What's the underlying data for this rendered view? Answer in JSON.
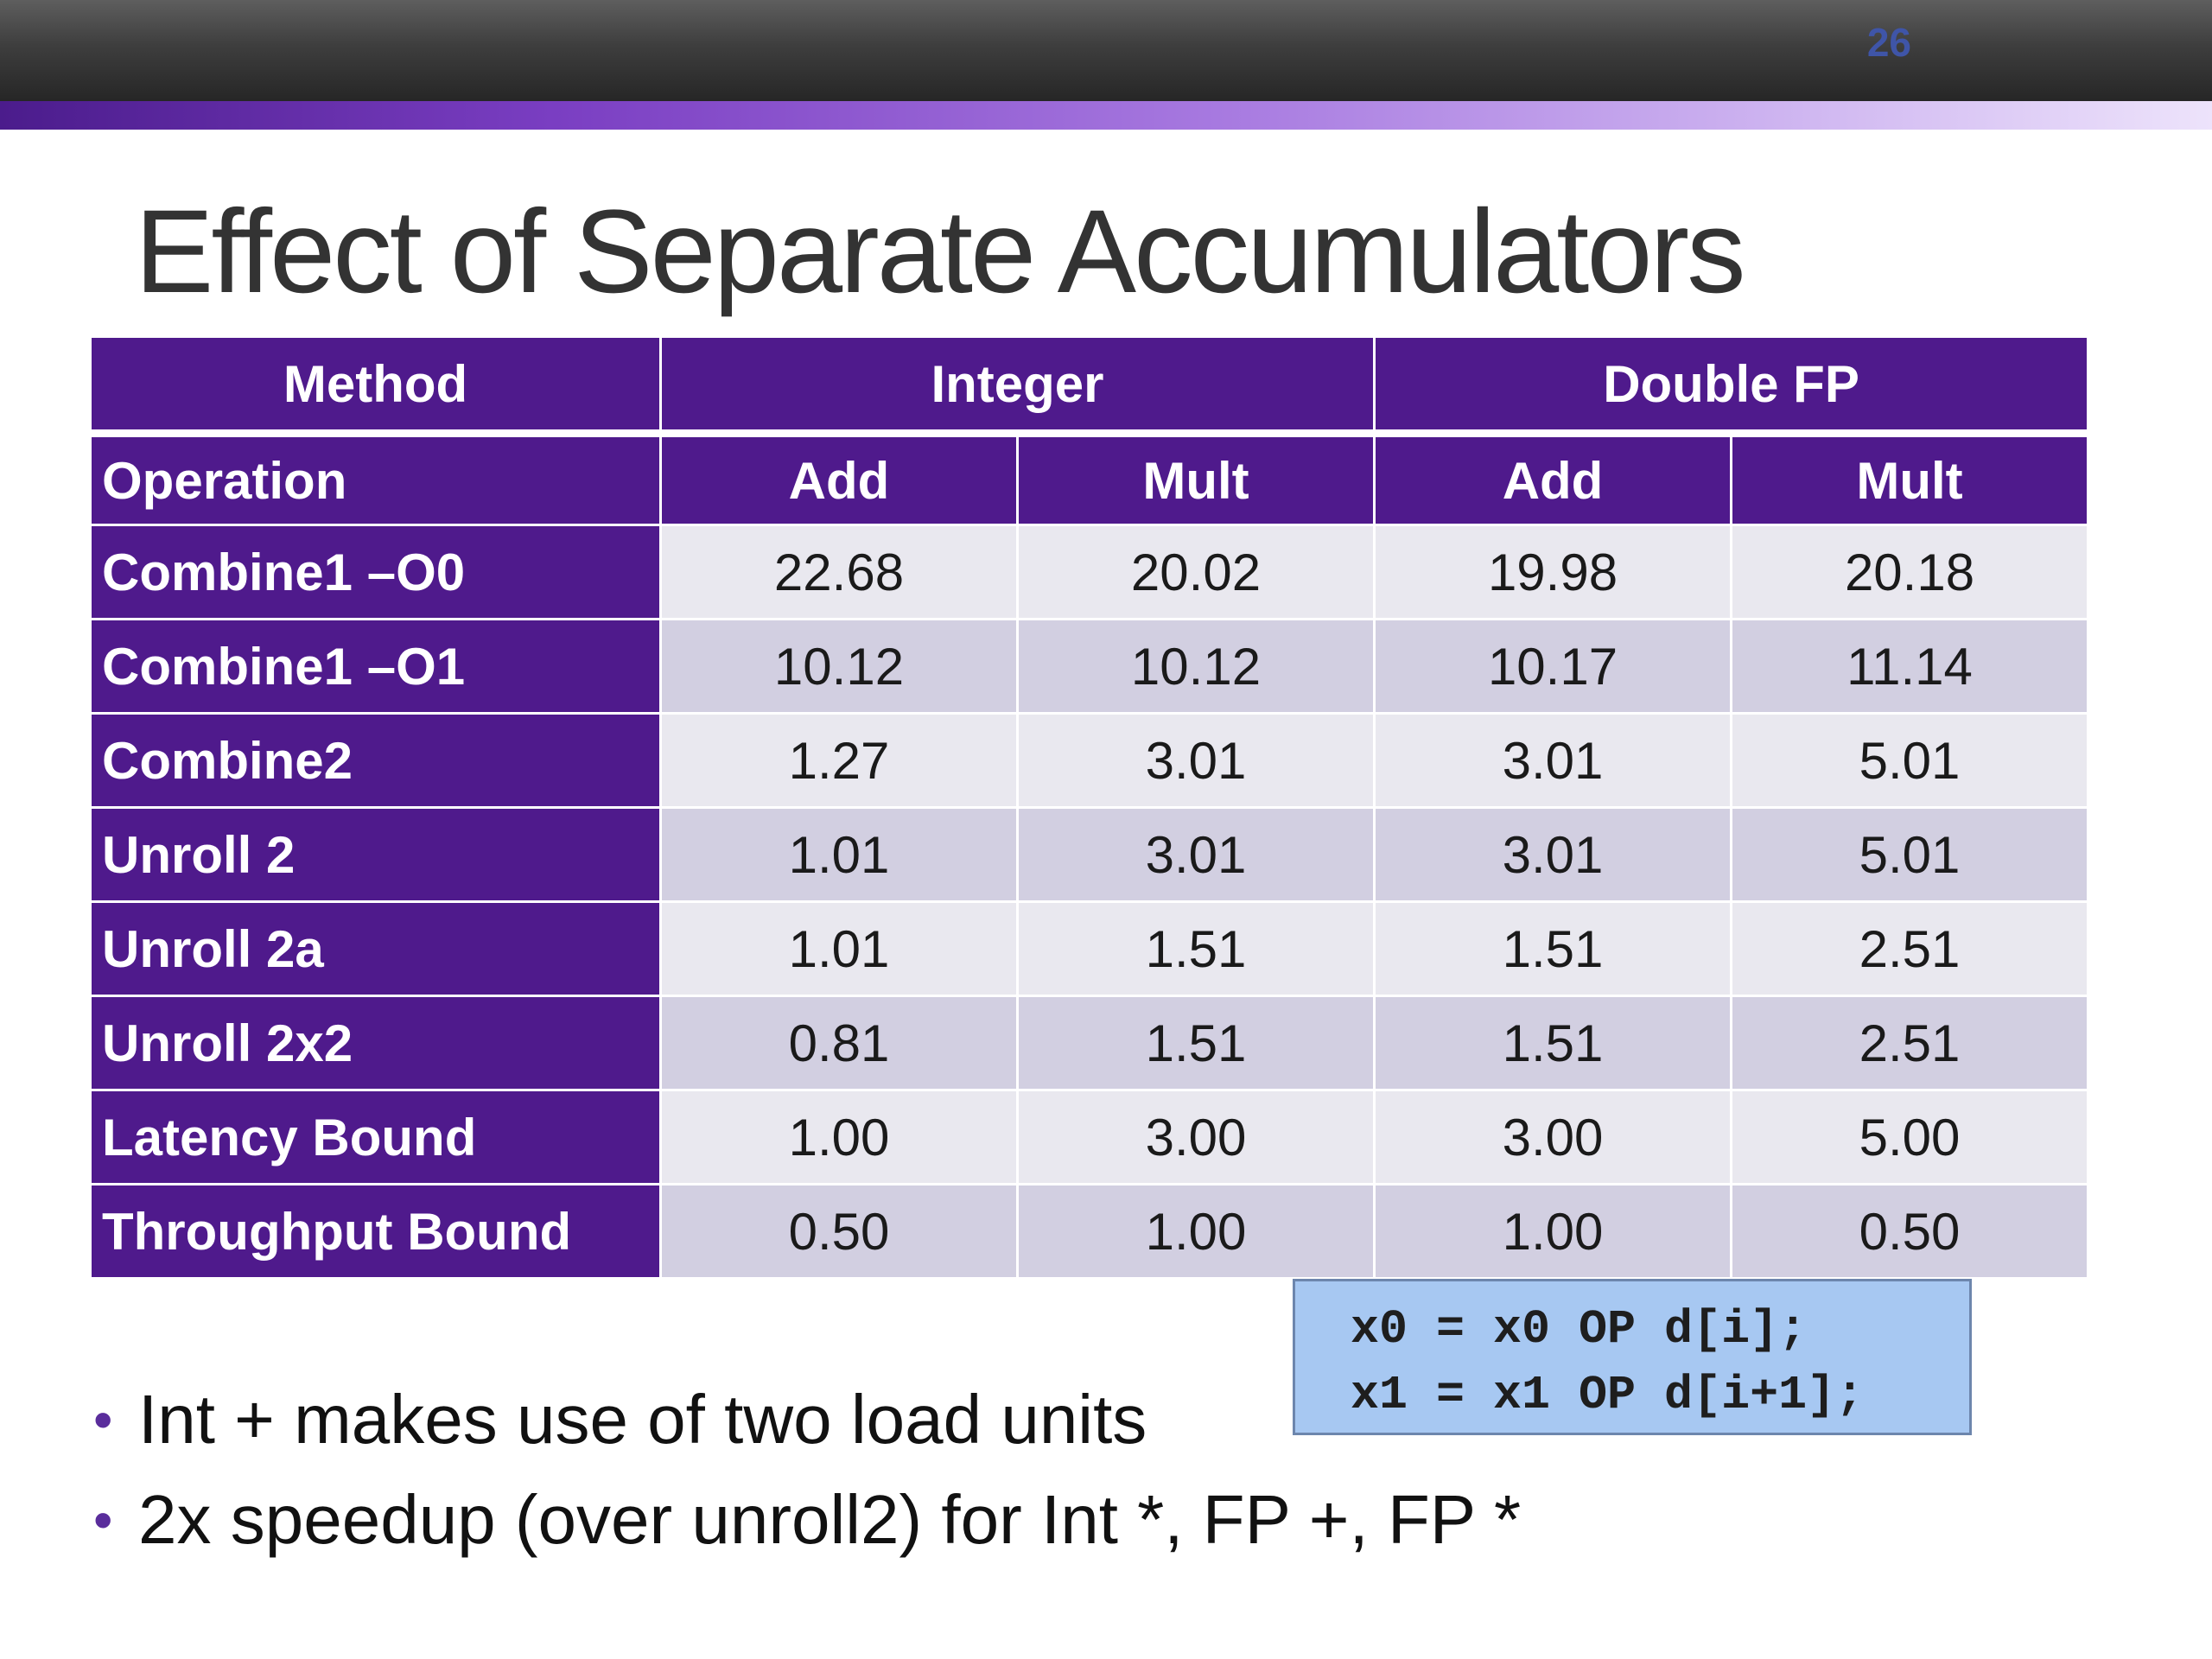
{
  "slide": {
    "page_number": "26",
    "title": "Effect of Separate Accumulators"
  },
  "table": {
    "group_header": {
      "method": "Method",
      "integer": "Integer",
      "double_fp": "Double FP"
    },
    "sub_header": {
      "operation": "Operation",
      "int_add": "Add",
      "int_mult": "Mult",
      "fp_add": "Add",
      "fp_mult": "Mult"
    },
    "rows": [
      {
        "method": "Combine1 –O0",
        "values": [
          "22.68",
          "20.02",
          "19.98",
          "20.18"
        ]
      },
      {
        "method": "Combine1 –O1",
        "values": [
          "10.12",
          "10.12",
          "10.17",
          "11.14"
        ]
      },
      {
        "method": "Combine2",
        "values": [
          "1.27",
          "3.01",
          "3.01",
          "5.01"
        ]
      },
      {
        "method": "Unroll 2",
        "values": [
          "1.01",
          "3.01",
          "3.01",
          "5.01"
        ]
      },
      {
        "method": "Unroll 2a",
        "values": [
          "1.01",
          "1.51",
          "1.51",
          "2.51"
        ]
      },
      {
        "method": "Unroll 2x2",
        "values": [
          "0.81",
          "1.51",
          "1.51",
          "2.51"
        ]
      },
      {
        "method": "Latency Bound",
        "values": [
          "1.00",
          "3.00",
          "3.00",
          "5.00"
        ]
      },
      {
        "method": "Throughput Bound",
        "values": [
          "0.50",
          "1.00",
          "1.00",
          "0.50"
        ]
      }
    ]
  },
  "code_box": {
    "lines": [
      "x0 = x0 OP d[i];",
      "x1 = x1 OP d[i+1];"
    ]
  },
  "bullets": [
    "Int + makes use of two load units",
    "2x speedup (over unroll2) for Int *, FP +, FP *"
  ],
  "colors": {
    "header_purple": "#4f1a8c",
    "row_light": "#e9e8ef",
    "row_dark": "#d2cfe1",
    "code_box_blue": "#a7c8f2",
    "page_number_blue": "#3f55a8"
  }
}
